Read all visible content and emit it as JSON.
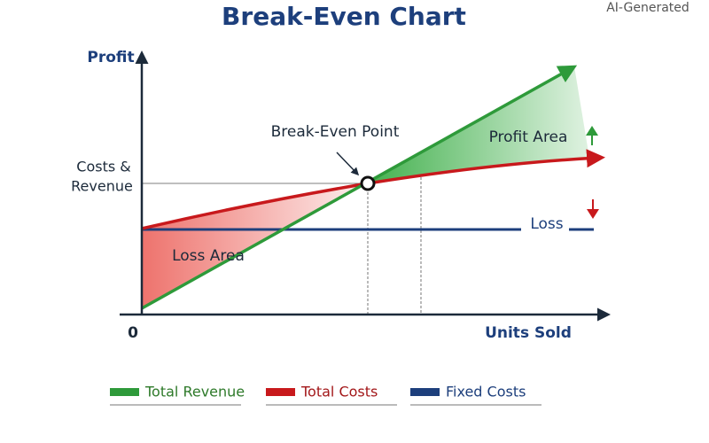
{
  "title": "Break-Even Chart",
  "badge": "AI-Generated",
  "axes": {
    "y_label": "Profit",
    "y_sublabel": [
      "Costs &",
      "Revenue"
    ],
    "origin": "0",
    "x_label": "Units Sold"
  },
  "annotations": {
    "break_even": "Break-Even Point",
    "profit_area": "Profit Area",
    "loss_area": "Loss Area",
    "loss": "Loss"
  },
  "legend": [
    {
      "label": "Total Revenue",
      "color": "#2e9a3a"
    },
    {
      "label": "Total Costs",
      "color": "#c8191c"
    },
    {
      "label": "Fixed Costs",
      "color": "#1d3f7c"
    }
  ]
}
